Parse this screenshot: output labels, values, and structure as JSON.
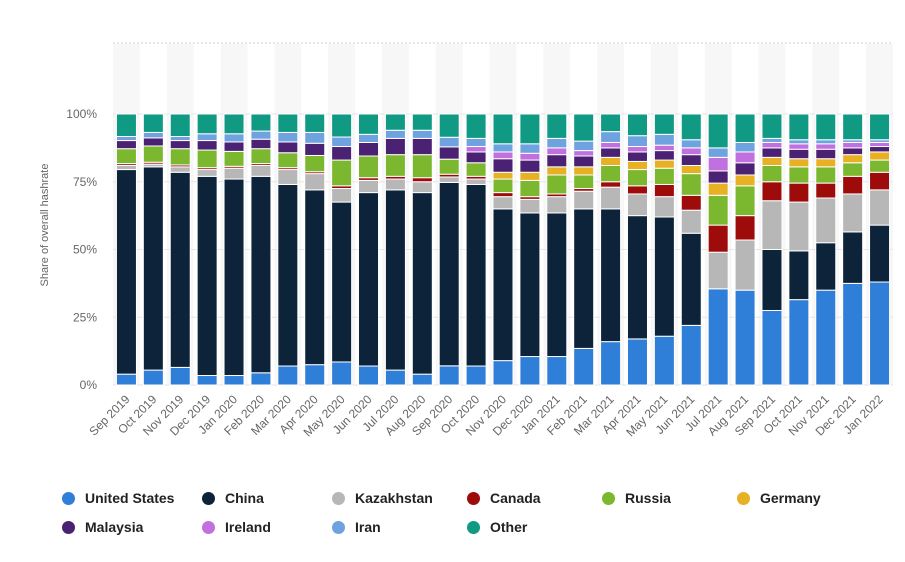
{
  "chart_data": {
    "type": "bar",
    "stacked": true,
    "title": "",
    "xlabel": "",
    "ylabel": "Share of overall hashrate",
    "ylim": [
      0,
      100
    ],
    "yticks": [
      "0%",
      "25%",
      "50%",
      "75%",
      "100%"
    ],
    "grid": true,
    "legend_position": "bottom",
    "categories": [
      "Sep 2019",
      "Oct 2019",
      "Nov 2019",
      "Dec 2019",
      "Jan 2020",
      "Feb 2020",
      "Mar 2020",
      "Apr 2020",
      "May 2020",
      "Jun 2020",
      "Jul 2020",
      "Aug 2020",
      "Sep 2020",
      "Oct 2020",
      "Nov 2020",
      "Dec 2020",
      "Jan 2021",
      "Feb 2021",
      "Mar 2021",
      "Apr 2021",
      "May 2021",
      "Jun 2021",
      "Jul 2021",
      "Aug 2021",
      "Sep 2021",
      "Oct 2021",
      "Nov 2021",
      "Dec 2021",
      "Jan 2022"
    ],
    "series": [
      {
        "name": "United States",
        "color": "#2f7ed8",
        "values": [
          4,
          5.5,
          6.5,
          3.5,
          3.5,
          4.5,
          7,
          7.5,
          8.5,
          7,
          5.5,
          4,
          7,
          7,
          9,
          10.5,
          10.5,
          13.5,
          16,
          17,
          18,
          22,
          35.5,
          35,
          27.5,
          31.5,
          35,
          37.5,
          38
        ]
      },
      {
        "name": "China",
        "color": "#0d233a",
        "values": [
          75.5,
          75,
          72,
          73.5,
          72.5,
          72.5,
          67,
          64.5,
          59,
          64,
          66.5,
          67,
          67,
          67,
          56,
          53,
          53,
          51.5,
          49,
          45.5,
          44,
          34,
          0,
          0,
          22.5,
          18,
          17.5,
          19,
          21
        ]
      },
      {
        "name": "Kazakhstan",
        "color": "#b7b7b7",
        "values": [
          1.5,
          1,
          2,
          2.5,
          4,
          4,
          5.5,
          6,
          5,
          4.5,
          4,
          4,
          2,
          2,
          4.5,
          5,
          6,
          6.5,
          8,
          8,
          7.5,
          8.5,
          13.5,
          18.5,
          18,
          18,
          16.5,
          14,
          13
        ]
      },
      {
        "name": "Canada",
        "color": "#9e0b0b",
        "values": [
          0.7,
          0.7,
          0.7,
          0.7,
          0.7,
          0.7,
          0.7,
          0.7,
          1,
          1,
          1,
          1.5,
          1,
          1,
          1.5,
          1,
          1,
          1,
          2,
          3,
          4.5,
          5.5,
          10,
          9,
          7,
          7,
          5.5,
          6.5,
          6.5
        ]
      },
      {
        "name": "Russia",
        "color": "#7cb82f",
        "values": [
          5.5,
          6,
          6,
          6.5,
          5.5,
          5.5,
          5.5,
          6,
          9.5,
          8,
          8,
          8.5,
          5.5,
          5,
          5,
          6,
          7,
          5,
          6,
          6,
          6,
          8,
          11,
          11,
          6,
          6,
          6,
          5,
          4.5
        ]
      },
      {
        "name": "Germany",
        "color": "#e8b023",
        "values": [
          0,
          0,
          0,
          0,
          0,
          0,
          0,
          0,
          0,
          0,
          0,
          0,
          0,
          0,
          2.5,
          3,
          3,
          3,
          3,
          3,
          3,
          3,
          4.5,
          4,
          3,
          3,
          3,
          3,
          3
        ]
      },
      {
        "name": "Malaysia",
        "color": "#4b2173",
        "values": [
          3,
          3,
          3,
          3.5,
          3.5,
          3.5,
          4,
          4.5,
          5,
          5,
          6,
          6,
          4.5,
          4,
          5,
          4.5,
          4.5,
          4,
          3.5,
          3.5,
          3.5,
          4,
          4.5,
          4.5,
          3.5,
          3.5,
          3.5,
          2.5,
          2
        ]
      },
      {
        "name": "Ireland",
        "color": "#c170df",
        "values": [
          0,
          0,
          0,
          0,
          0,
          0,
          0,
          0,
          0,
          0,
          0,
          0,
          0,
          2,
          2.5,
          2.5,
          2.5,
          2,
          2,
          2,
          2,
          2.5,
          5,
          4,
          2,
          2,
          2,
          2,
          1.5
        ]
      },
      {
        "name": "Iran",
        "color": "#6ea3e0",
        "values": [
          1.5,
          2,
          1.5,
          2.5,
          3,
          3,
          3.5,
          4,
          3.5,
          3,
          3,
          3,
          3.5,
          3,
          3,
          3.5,
          3.5,
          3.5,
          4,
          4,
          4,
          3,
          3.5,
          3.5,
          1.5,
          1.5,
          1.5,
          1,
          1
        ]
      },
      {
        "name": "Other",
        "color": "#109983",
        "values": [
          8.3,
          6.8,
          8.3,
          7.3,
          7.3,
          6.3,
          6.8,
          6.8,
          8.5,
          7.5,
          6,
          6,
          8.5,
          9,
          11,
          11,
          9,
          10,
          6.5,
          8,
          7.5,
          9.5,
          12.5,
          10.5,
          9,
          9.5,
          9.5,
          9.5,
          9.5
        ]
      }
    ]
  }
}
